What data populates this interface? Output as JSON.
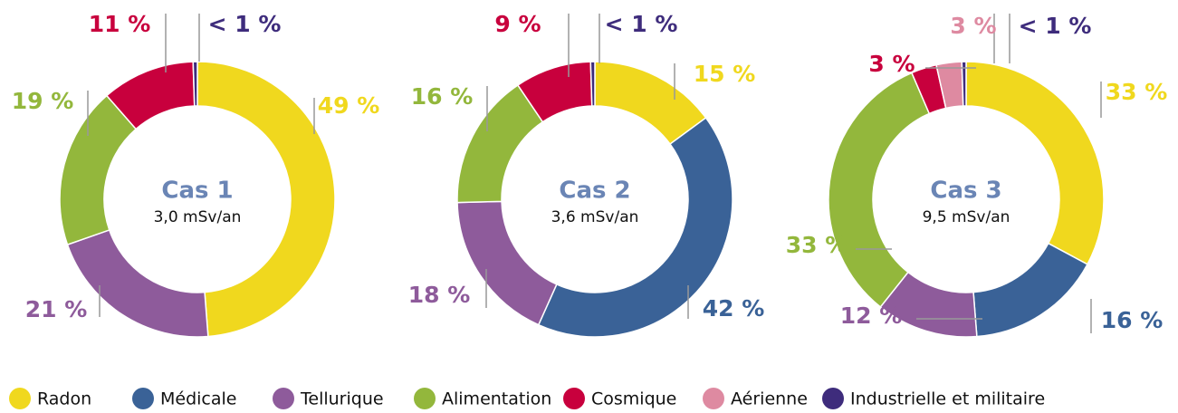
{
  "legend": {
    "categories": [
      "Radon",
      "Médicale",
      "Tellurique",
      "Alimentation",
      "Cosmique",
      "Aérienne",
      "Industrielle et militaire"
    ],
    "colors": [
      "#f0d81e",
      "#3a6297",
      "#8e5b9b",
      "#93b73c",
      "#c8003d",
      "#de8aa1",
      "#3e2c7c"
    ]
  },
  "chart_data": [
    {
      "type": "pie",
      "title": "Cas 1",
      "subtitle": "3,0 mSv/an",
      "categories": [
        "Radon",
        "Tellurique",
        "Alimentation",
        "Cosmique",
        "Industrielle et militaire"
      ],
      "values": [
        49,
        21,
        19,
        11,
        0.5
      ],
      "value_labels": [
        "49 %",
        "21 %",
        "19 %",
        "11 %",
        "< 1 %"
      ]
    },
    {
      "type": "pie",
      "title": "Cas 2",
      "subtitle": "3,6 mSv/an",
      "categories": [
        "Radon",
        "Médicale",
        "Tellurique",
        "Alimentation",
        "Cosmique",
        "Industrielle et militaire"
      ],
      "values": [
        15,
        42,
        18,
        16,
        9,
        0.5
      ],
      "value_labels": [
        "15 %",
        "42 %",
        "18 %",
        "16 %",
        "9 %",
        "< 1 %"
      ]
    },
    {
      "type": "pie",
      "title": "Cas 3",
      "subtitle": "9,5 mSv/an",
      "categories": [
        "Radon",
        "Médicale",
        "Tellurique",
        "Alimentation",
        "Cosmique",
        "Aérienne",
        "Industrielle et militaire"
      ],
      "values": [
        33,
        16,
        12,
        33,
        3,
        3,
        0.5
      ],
      "value_labels": [
        "33 %",
        "16 %",
        "12 %",
        "33 %",
        "3 %",
        "3 %",
        "< 1 %"
      ]
    }
  ]
}
